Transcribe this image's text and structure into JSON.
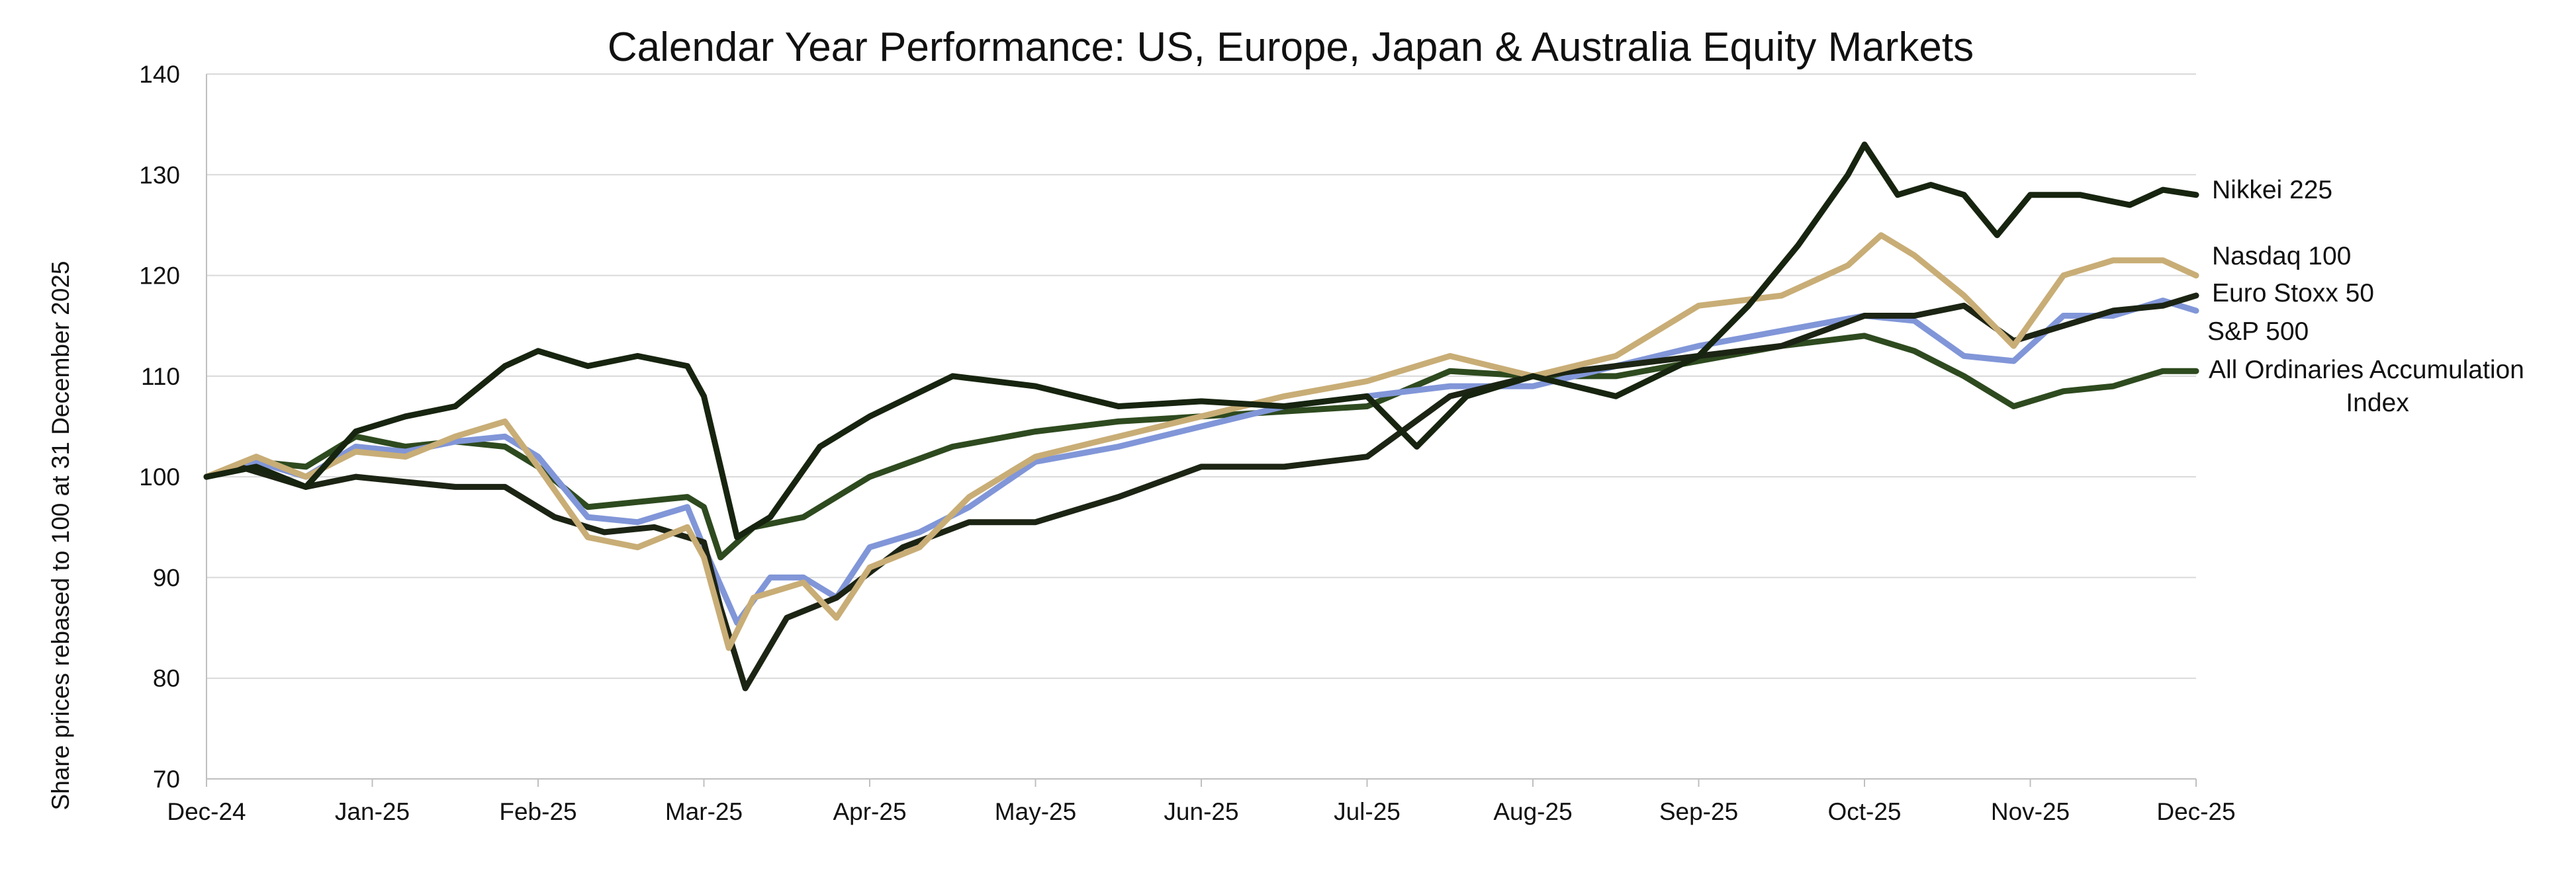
{
  "chart_data": {
    "type": "line",
    "title": "Calendar Year Performance: US, Europe, Japan & Australia Equity Markets",
    "ylabel": "Share prices rebased to 100 at  31  December 2025",
    "xlabel": "",
    "ylim": [
      70,
      140
    ],
    "yticks": [
      70,
      80,
      90,
      100,
      110,
      120,
      130,
      140
    ],
    "xlim": [
      0,
      12
    ],
    "xticks": [
      "Dec-24",
      "Jan-25",
      "Feb-25",
      "Mar-25",
      "Apr-25",
      "May-25",
      "Jun-25",
      "Jul-25",
      "Aug-25",
      "Sep-25",
      "Oct-25",
      "Nov-25",
      "Dec-25"
    ],
    "grid": "horizontal",
    "legend": "end-of-line labels",
    "series": [
      {
        "name": "All Ordinaries Accumulation Index",
        "color": "#2e4a1f",
        "label_lines": [
          "All Ordinaries Accumulation",
          "Index"
        ],
        "x": [
          0,
          0.3,
          0.6,
          0.9,
          1.2,
          1.5,
          1.8,
          2.0,
          2.3,
          2.6,
          2.9,
          3.0,
          3.1,
          3.3,
          3.6,
          4.0,
          4.5,
          5.0,
          5.5,
          6.0,
          6.5,
          7.0,
          7.5,
          8.0,
          8.5,
          9.0,
          9.5,
          10.0,
          10.3,
          10.6,
          10.9,
          11.2,
          11.5,
          11.8,
          12.0
        ],
        "y": [
          100,
          101.5,
          101,
          104,
          103,
          103.5,
          103,
          101,
          97,
          97.5,
          98,
          97,
          92,
          95,
          96,
          100,
          103,
          104.5,
          105.5,
          106,
          106.5,
          107,
          110.5,
          110,
          110,
          111.5,
          113,
          114,
          112.5,
          110,
          107,
          108.5,
          109,
          110.5,
          110.5
        ]
      },
      {
        "name": "S&P 500",
        "color": "#8196d8",
        "x": [
          0,
          0.3,
          0.6,
          0.9,
          1.2,
          1.5,
          1.8,
          2.0,
          2.3,
          2.6,
          2.9,
          3.0,
          3.2,
          3.4,
          3.6,
          3.8,
          4.0,
          4.3,
          4.6,
          5.0,
          5.5,
          6.0,
          6.5,
          7.0,
          7.5,
          8.0,
          8.5,
          9.0,
          9.5,
          10.0,
          10.3,
          10.6,
          10.9,
          11.2,
          11.5,
          11.8,
          12.0
        ],
        "y": [
          100,
          101.5,
          100,
          103,
          102.5,
          103.5,
          104,
          102,
          96,
          95.5,
          97,
          93,
          85.5,
          90,
          90,
          88,
          93,
          94.5,
          97,
          101.5,
          103,
          105,
          107,
          108,
          109,
          109,
          111,
          113,
          114.5,
          116,
          115.5,
          112,
          111.5,
          116,
          116,
          117.5,
          116.5
        ]
      },
      {
        "name": "Euro Stoxx 50",
        "color": "#1c2414",
        "x": [
          0,
          0.2,
          0.4,
          0.6,
          0.9,
          1.2,
          1.5,
          1.8,
          2.1,
          2.4,
          2.7,
          3.0,
          3.1,
          3.25,
          3.5,
          3.8,
          4.2,
          4.6,
          5.0,
          5.5,
          6.0,
          6.5,
          7.0,
          7.5,
          8.0,
          8.5,
          9.0,
          9.5,
          10.0,
          10.3,
          10.6,
          10.9,
          11.2,
          11.5,
          11.8,
          12.0
        ],
        "y": [
          100,
          101,
          100,
          99,
          100,
          99.5,
          99,
          99,
          96,
          94.5,
          95,
          93.5,
          87,
          79,
          86,
          88,
          93,
          95.5,
          95.5,
          98,
          101,
          101,
          102,
          108,
          110,
          111,
          112,
          113,
          116,
          116,
          117,
          113.5,
          115,
          116.5,
          117,
          118
        ]
      },
      {
        "name": "Nasdaq 100",
        "color": "#c8ad76",
        "x": [
          0,
          0.3,
          0.6,
          0.9,
          1.2,
          1.5,
          1.8,
          2.0,
          2.3,
          2.6,
          2.9,
          3.0,
          3.15,
          3.3,
          3.6,
          3.8,
          4.0,
          4.3,
          4.6,
          5.0,
          5.5,
          6.0,
          6.5,
          7.0,
          7.5,
          8.0,
          8.5,
          9.0,
          9.5,
          9.9,
          10.1,
          10.3,
          10.6,
          10.9,
          11.2,
          11.5,
          11.8,
          12.0
        ],
        "y": [
          100,
          102,
          100,
          102.5,
          102,
          104,
          105.5,
          101,
          94,
          93,
          95,
          92,
          83,
          88,
          89.5,
          86,
          91,
          93,
          98,
          102,
          104,
          106,
          108,
          109.5,
          112,
          110,
          112,
          117,
          118,
          121,
          124,
          122,
          118,
          113,
          120,
          121.5,
          121.5,
          120
        ]
      },
      {
        "name": "Nikkei 225",
        "color": "#17240f",
        "x": [
          0,
          0.3,
          0.6,
          0.9,
          1.2,
          1.5,
          1.8,
          2.0,
          2.3,
          2.6,
          2.9,
          3.0,
          3.1,
          3.2,
          3.4,
          3.7,
          4.0,
          4.5,
          5.0,
          5.5,
          6.0,
          6.5,
          7.0,
          7.3,
          7.6,
          8.0,
          8.5,
          9.0,
          9.3,
          9.6,
          9.9,
          10.0,
          10.2,
          10.4,
          10.6,
          10.8,
          11.0,
          11.3,
          11.6,
          11.8,
          12.0
        ],
        "y": [
          100,
          101,
          99,
          104.5,
          106,
          107,
          111,
          112.5,
          111,
          112,
          111,
          108,
          101,
          94,
          96,
          103,
          106,
          110,
          109,
          107,
          107.5,
          107,
          108,
          103,
          108,
          110,
          108,
          112,
          117,
          123,
          130,
          133,
          128,
          129,
          128,
          124,
          128,
          128,
          127,
          128.5,
          128
        ]
      }
    ]
  }
}
